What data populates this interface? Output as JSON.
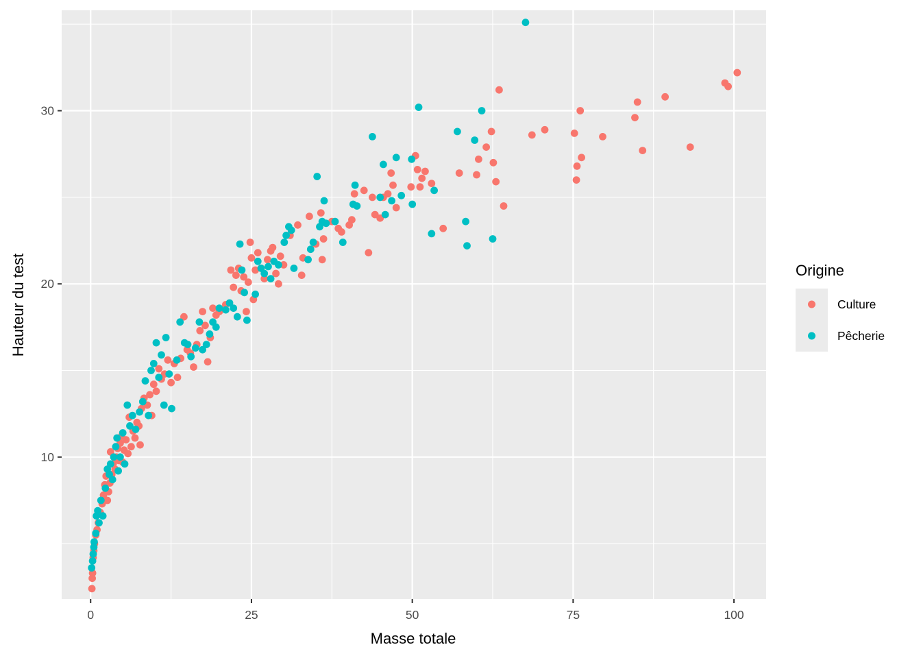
{
  "chart_data": {
    "type": "scatter",
    "title": "",
    "xlabel": "Masse totale",
    "ylabel": "Hauteur du test",
    "xlim": [
      -4.5,
      105
    ],
    "ylim": [
      1.8,
      35.8
    ],
    "x_ticks": [
      0,
      25,
      50,
      75,
      100
    ],
    "y_ticks": [
      10,
      20,
      30
    ],
    "x_tick_labels": [
      "0",
      "25",
      "50",
      "75",
      "100"
    ],
    "y_tick_labels": [
      "10",
      "20",
      "30"
    ],
    "grid": true,
    "legend": {
      "title": "Origine",
      "position": "right"
    },
    "series": [
      {
        "name": "Culture",
        "color": "#F8766D",
        "points": [
          [
            0.2,
            2.4
          ],
          [
            0.25,
            3.0
          ],
          [
            0.3,
            3.3
          ],
          [
            0.4,
            4.2
          ],
          [
            0.5,
            4.6
          ],
          [
            0.6,
            5.0
          ],
          [
            0.8,
            5.5
          ],
          [
            1.0,
            5.8
          ],
          [
            1.2,
            6.2
          ],
          [
            1.5,
            6.8
          ],
          [
            1.8,
            7.3
          ],
          [
            2.0,
            7.8
          ],
          [
            2.2,
            8.4
          ],
          [
            2.4,
            8.9
          ],
          [
            2.6,
            7.5
          ],
          [
            2.8,
            8.0
          ],
          [
            3.0,
            8.5
          ],
          [
            3.1,
            10.3
          ],
          [
            3.3,
            9.0
          ],
          [
            3.5,
            9.6
          ],
          [
            3.8,
            9.3
          ],
          [
            4.0,
            10.0
          ],
          [
            4.2,
            10.5
          ],
          [
            4.4,
            9.8
          ],
          [
            4.6,
            10.8
          ],
          [
            4.8,
            11.2
          ],
          [
            5.0,
            9.7
          ],
          [
            5.2,
            10.4
          ],
          [
            5.5,
            11.0
          ],
          [
            5.8,
            10.2
          ],
          [
            6.0,
            12.3
          ],
          [
            6.3,
            10.6
          ],
          [
            6.6,
            11.5
          ],
          [
            6.9,
            11.1
          ],
          [
            7.2,
            12.0
          ],
          [
            7.5,
            11.8
          ],
          [
            7.7,
            10.7
          ],
          [
            7.9,
            12.8
          ],
          [
            8.3,
            13.4
          ],
          [
            8.8,
            13.0
          ],
          [
            9.2,
            13.6
          ],
          [
            9.5,
            12.4
          ],
          [
            9.8,
            14.2
          ],
          [
            10.2,
            13.8
          ],
          [
            10.6,
            15.1
          ],
          [
            11.0,
            14.5
          ],
          [
            11.5,
            14.8
          ],
          [
            12.0,
            15.6
          ],
          [
            12.5,
            14.3
          ],
          [
            13.0,
            15.4
          ],
          [
            13.5,
            14.6
          ],
          [
            14.0,
            15.7
          ],
          [
            14.5,
            18.1
          ],
          [
            15.0,
            16.2
          ],
          [
            15.5,
            16.0
          ],
          [
            16.0,
            15.2
          ],
          [
            16.5,
            16.5
          ],
          [
            17.0,
            17.3
          ],
          [
            17.4,
            18.4
          ],
          [
            17.8,
            17.6
          ],
          [
            18.2,
            15.5
          ],
          [
            18.6,
            16.9
          ],
          [
            19.0,
            18.6
          ],
          [
            19.5,
            18.2
          ],
          [
            20.0,
            18.4
          ],
          [
            21.0,
            18.8
          ],
          [
            21.8,
            20.8
          ],
          [
            22.2,
            19.8
          ],
          [
            22.6,
            20.5
          ],
          [
            23.0,
            20.9
          ],
          [
            23.4,
            19.6
          ],
          [
            23.8,
            20.4
          ],
          [
            24.2,
            18.4
          ],
          [
            24.5,
            20.1
          ],
          [
            24.8,
            22.4
          ],
          [
            25.0,
            21.5
          ],
          [
            25.3,
            19.1
          ],
          [
            25.6,
            20.8
          ],
          [
            26.0,
            21.8
          ],
          [
            26.5,
            20.9
          ],
          [
            27.0,
            20.3
          ],
          [
            27.5,
            21.4
          ],
          [
            28.0,
            21.9
          ],
          [
            28.3,
            22.1
          ],
          [
            28.8,
            20.6
          ],
          [
            29.2,
            20.0
          ],
          [
            29.5,
            21.6
          ],
          [
            30.0,
            21.1
          ],
          [
            31.0,
            22.8
          ],
          [
            32.2,
            23.4
          ],
          [
            32.8,
            20.5
          ],
          [
            33.0,
            21.5
          ],
          [
            34.0,
            23.9
          ],
          [
            35.0,
            22.3
          ],
          [
            35.8,
            24.1
          ],
          [
            36.0,
            21.4
          ],
          [
            36.2,
            22.6
          ],
          [
            37.5,
            23.6
          ],
          [
            38.5,
            23.2
          ],
          [
            39.0,
            23.0
          ],
          [
            40.2,
            23.4
          ],
          [
            40.6,
            23.7
          ],
          [
            41.0,
            25.2
          ],
          [
            42.5,
            25.4
          ],
          [
            43.2,
            21.8
          ],
          [
            43.8,
            25.0
          ],
          [
            44.2,
            24.0
          ],
          [
            45.0,
            23.8
          ],
          [
            45.5,
            25.0
          ],
          [
            46.2,
            25.2
          ],
          [
            46.7,
            26.4
          ],
          [
            47.0,
            25.7
          ],
          [
            47.5,
            24.4
          ],
          [
            49.8,
            25.6
          ],
          [
            50.5,
            27.4
          ],
          [
            50.8,
            26.6
          ],
          [
            51.2,
            25.6
          ],
          [
            51.5,
            26.1
          ],
          [
            52.0,
            26.5
          ],
          [
            53.0,
            25.8
          ],
          [
            54.8,
            23.2
          ],
          [
            57.3,
            26.4
          ],
          [
            60.0,
            26.3
          ],
          [
            60.3,
            27.2
          ],
          [
            61.5,
            27.9
          ],
          [
            62.3,
            28.8
          ],
          [
            62.6,
            27.0
          ],
          [
            63.0,
            25.9
          ],
          [
            63.5,
            31.2
          ],
          [
            64.2,
            24.5
          ],
          [
            68.6,
            28.6
          ],
          [
            70.6,
            28.9
          ],
          [
            75.2,
            28.7
          ],
          [
            75.5,
            26.0
          ],
          [
            75.6,
            26.8
          ],
          [
            76.1,
            30.0
          ],
          [
            76.3,
            27.3
          ],
          [
            79.6,
            28.5
          ],
          [
            84.6,
            29.6
          ],
          [
            85.0,
            30.5
          ],
          [
            85.8,
            27.7
          ],
          [
            89.3,
            30.8
          ],
          [
            93.2,
            27.9
          ],
          [
            98.6,
            31.6
          ],
          [
            99.1,
            31.4
          ],
          [
            100.5,
            32.2
          ]
        ]
      },
      {
        "name": "Pêcherie",
        "color": "#00BFC4",
        "points": [
          [
            0.15,
            3.6
          ],
          [
            0.3,
            4.0
          ],
          [
            0.4,
            4.4
          ],
          [
            0.5,
            4.8
          ],
          [
            0.55,
            5.1
          ],
          [
            0.8,
            5.6
          ],
          [
            0.9,
            6.6
          ],
          [
            1.1,
            6.9
          ],
          [
            1.3,
            6.2
          ],
          [
            1.6,
            7.5
          ],
          [
            1.9,
            6.6
          ],
          [
            2.3,
            8.2
          ],
          [
            2.6,
            9.3
          ],
          [
            2.9,
            9.0
          ],
          [
            3.1,
            9.6
          ],
          [
            3.4,
            8.7
          ],
          [
            3.6,
            10.0
          ],
          [
            3.9,
            10.6
          ],
          [
            4.1,
            11.1
          ],
          [
            4.3,
            9.2
          ],
          [
            4.6,
            10.0
          ],
          [
            5.0,
            11.4
          ],
          [
            5.3,
            9.6
          ],
          [
            5.7,
            13.0
          ],
          [
            6.1,
            11.8
          ],
          [
            6.5,
            12.4
          ],
          [
            7.0,
            11.6
          ],
          [
            7.6,
            12.6
          ],
          [
            8.1,
            13.2
          ],
          [
            8.5,
            14.4
          ],
          [
            9.0,
            12.4
          ],
          [
            9.4,
            15.0
          ],
          [
            9.8,
            15.4
          ],
          [
            10.2,
            16.6
          ],
          [
            10.6,
            14.6
          ],
          [
            11.0,
            15.9
          ],
          [
            11.4,
            13.0
          ],
          [
            11.7,
            16.9
          ],
          [
            12.2,
            14.8
          ],
          [
            12.6,
            12.8
          ],
          [
            13.4,
            15.6
          ],
          [
            13.9,
            17.8
          ],
          [
            14.6,
            16.6
          ],
          [
            15.1,
            16.5
          ],
          [
            15.6,
            15.8
          ],
          [
            16.3,
            16.3
          ],
          [
            16.9,
            17.8
          ],
          [
            17.4,
            16.2
          ],
          [
            18.0,
            16.5
          ],
          [
            18.5,
            17.1
          ],
          [
            19.0,
            17.8
          ],
          [
            19.5,
            17.5
          ],
          [
            20.0,
            18.6
          ],
          [
            21.0,
            18.5
          ],
          [
            21.6,
            18.9
          ],
          [
            22.2,
            18.6
          ],
          [
            22.8,
            18.1
          ],
          [
            23.2,
            22.3
          ],
          [
            23.5,
            20.8
          ],
          [
            23.9,
            19.5
          ],
          [
            24.3,
            17.9
          ],
          [
            25.6,
            19.4
          ],
          [
            26.0,
            21.3
          ],
          [
            26.5,
            20.9
          ],
          [
            27.0,
            20.6
          ],
          [
            27.6,
            21.0
          ],
          [
            28.0,
            20.3
          ],
          [
            28.5,
            21.3
          ],
          [
            29.2,
            21.1
          ],
          [
            30.1,
            22.4
          ],
          [
            30.4,
            22.8
          ],
          [
            30.8,
            23.3
          ],
          [
            31.2,
            23.1
          ],
          [
            31.6,
            20.9
          ],
          [
            33.8,
            21.4
          ],
          [
            34.2,
            22.0
          ],
          [
            34.6,
            22.4
          ],
          [
            35.2,
            26.2
          ],
          [
            35.6,
            23.3
          ],
          [
            36.0,
            23.6
          ],
          [
            36.3,
            24.8
          ],
          [
            36.6,
            23.5
          ],
          [
            38.0,
            23.6
          ],
          [
            39.2,
            22.4
          ],
          [
            40.8,
            24.6
          ],
          [
            41.1,
            25.7
          ],
          [
            41.4,
            24.5
          ],
          [
            43.8,
            28.5
          ],
          [
            45.0,
            25.0
          ],
          [
            45.5,
            26.9
          ],
          [
            45.8,
            24.0
          ],
          [
            46.8,
            24.8
          ],
          [
            47.5,
            27.3
          ],
          [
            48.3,
            25.1
          ],
          [
            49.9,
            27.2
          ],
          [
            50.0,
            24.6
          ],
          [
            51.0,
            30.2
          ],
          [
            53.0,
            22.9
          ],
          [
            53.4,
            25.4
          ],
          [
            57.0,
            28.8
          ],
          [
            58.3,
            23.6
          ],
          [
            58.5,
            22.2
          ],
          [
            59.7,
            28.3
          ],
          [
            60.8,
            30.0
          ],
          [
            62.5,
            22.6
          ],
          [
            67.6,
            35.1
          ]
        ]
      }
    ]
  }
}
